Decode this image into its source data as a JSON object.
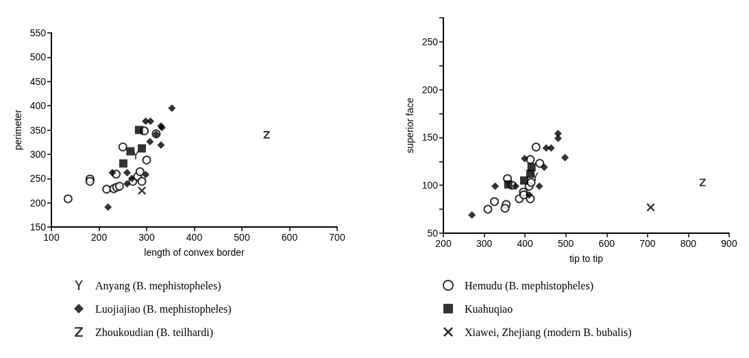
{
  "chart_data": [
    {
      "type": "scatter",
      "xlabel": "length of convex border",
      "ylabel": "perimeter",
      "xlim": [
        100,
        700
      ],
      "xticks": [
        100,
        200,
        300,
        400,
        500,
        600,
        700
      ],
      "ylim": [
        150,
        550
      ],
      "yticks": [
        150,
        200,
        250,
        300,
        350,
        400,
        450,
        500,
        550
      ],
      "grid": false,
      "legend": "bottom left",
      "series": [
        {
          "name": "Anyang (B. mephistopheles)",
          "color": "#000000",
          "x": [
            277
          ],
          "values": [
            298
          ]
        },
        {
          "marker": "circle",
          "color": "#000000",
          "x": [
            135,
            181,
            181,
            216,
            231,
            237,
            243,
            236,
            250,
            271,
            281,
            286,
            290,
            300,
            295,
            320
          ],
          "values": [
            208,
            249,
            244,
            228,
            229,
            232,
            234,
            259,
            315,
            244,
            254,
            264,
            244,
            288,
            348,
            342
          ]
        },
        {
          "name": "Luojiajiao (B. mephistopheles)",
          "marker": "diamond",
          "color": "#000000",
          "x": [
            219,
            228,
            259,
            259,
            269,
            298,
            298,
            308,
            330,
            332,
            307,
            330,
            320,
            353
          ],
          "values": [
            191,
            262,
            262,
            239,
            250,
            258,
            368,
            368,
            358,
            355,
            326,
            319,
            341,
            395
          ]
        },
        {
          "marker": "square",
          "color": "#000000",
          "x": [
            284,
            266,
            290,
            251
          ],
          "values": [
            350,
            306,
            312,
            281
          ]
        },
        {
          "name": "Zhoukoudian (B. teilhardi)",
          "color": "#000000",
          "x": [
            552
          ],
          "values": [
            340
          ]
        },
        {
          "marker": "cross",
          "color": "#000000",
          "x": [
            290
          ],
          "values": [
            225
          ]
        }
      ]
    },
    {
      "type": "scatter",
      "xlabel": "tip to tip",
      "ylabel": "superior face",
      "xlim": [
        200,
        900
      ],
      "xticks": [
        200,
        300,
        400,
        500,
        600,
        700,
        800,
        900
      ],
      "ylim": [
        50,
        275
      ],
      "yticks": [
        50,
        {
          "value": 75,
          "label": null
        },
        100,
        {
          "value": 125,
          "label": null
        },
        150,
        {
          "value": 175,
          "label": null
        },
        200,
        {
          "value": 225,
          "label": null
        },
        250,
        {
          "value": 275,
          "label": null
        }
      ],
      "grid": false,
      "legend": "bottom left",
      "series": [
        {
          "color": "#000000",
          "x": [
            425
          ],
          "values": [
            109
          ]
        },
        {
          "name": "Hemudu (B. mephistopheles)",
          "marker": "circle",
          "color": "#000000",
          "x": [
            309,
            325,
            354,
            351,
            357,
            368,
            386,
            396,
            397,
            410,
            413,
            413,
            415,
            427,
            436
          ],
          "values": [
            75,
            83,
            80,
            76,
            107,
            100,
            86,
            93,
            90,
            99,
            127,
            86,
            103,
            140,
            123
          ]
        },
        {
          "marker": "diamond",
          "color": "#000000",
          "x": [
            270,
            327,
            377,
            399,
            435,
            447,
            452,
            464,
            481,
            481,
            498,
            410
          ],
          "values": [
            69,
            99,
            99,
            128,
            99,
            119,
            139,
            139,
            154,
            149,
            129,
            90
          ]
        },
        {
          "name": "Kuahuqiao",
          "marker": "square",
          "color": "#000000",
          "x": [
            359,
            398,
            413,
            416
          ],
          "values": [
            101,
            105,
            112,
            119
          ]
        },
        {
          "color": "#000000",
          "x": [
            835
          ],
          "values": [
            103
          ]
        },
        {
          "name": "Xiawei, Zhejiang (modern B. bubalis)",
          "marker": "cross",
          "color": "#000000",
          "x": [
            708
          ],
          "values": [
            77
          ]
        }
      ]
    }
  ]
}
